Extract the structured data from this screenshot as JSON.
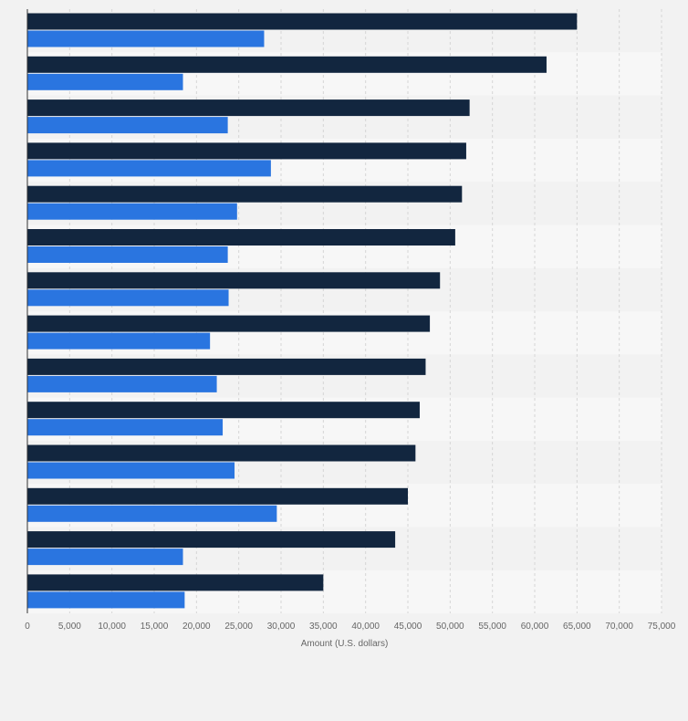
{
  "chart_data": {
    "type": "bar",
    "orientation": "horizontal",
    "title": "",
    "xlabel": "Amount (U.S. dollars)",
    "ylabel": "",
    "xlim": [
      0,
      75000
    ],
    "x_ticks": [
      0,
      5000,
      10000,
      15000,
      20000,
      25000,
      30000,
      35000,
      40000,
      45000,
      50000,
      55000,
      60000,
      65000,
      70000,
      75000
    ],
    "x_tick_labels": [
      "0",
      "5,000",
      "10,000",
      "15,000",
      "20,000",
      "25,000",
      "30,000",
      "35,000",
      "40,000",
      "45,000",
      "50,000",
      "55,000",
      "60,000",
      "65,000",
      "70,000",
      "75,000"
    ],
    "categories": [
      "",
      "",
      "",
      "",
      "",
      "",
      "",
      "",
      "",
      "",
      "",
      "",
      "",
      ""
    ],
    "series": [
      {
        "color": "#12263f",
        "values": [
          65000,
          61400,
          52300,
          51900,
          51400,
          50600,
          48800,
          47600,
          47100,
          46400,
          45900,
          45000,
          43500,
          35000
        ]
      },
      {
        "color": "#2a75e0",
        "values": [
          28000,
          18400,
          23700,
          28800,
          24800,
          23700,
          23800,
          21600,
          22400,
          23100,
          24500,
          29500,
          18400,
          18600
        ]
      }
    ],
    "grid": true,
    "legend": "none"
  }
}
